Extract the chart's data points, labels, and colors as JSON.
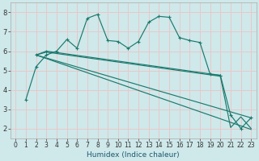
{
  "xlabel": "Humidex (Indice chaleur)",
  "bg_color": "#cfe8ea",
  "grid_color": "#e8c8c8",
  "line_color": "#1a7a6e",
  "xlim": [
    -0.5,
    23.5
  ],
  "ylim": [
    1.5,
    8.5
  ],
  "xticks": [
    0,
    1,
    2,
    3,
    4,
    5,
    6,
    7,
    8,
    9,
    10,
    11,
    12,
    13,
    14,
    15,
    16,
    17,
    18,
    19,
    20,
    21,
    22,
    23
  ],
  "yticks": [
    2,
    3,
    4,
    5,
    6,
    7,
    8
  ],
  "curve1_x": [
    1,
    2,
    3,
    4,
    5,
    6,
    7,
    8,
    9,
    10,
    11,
    12,
    13,
    14,
    15,
    16,
    17,
    18,
    19,
    20
  ],
  "curve1_y": [
    3.5,
    5.2,
    5.8,
    6.0,
    6.6,
    6.15,
    7.7,
    7.9,
    6.55,
    6.5,
    6.15,
    6.5,
    7.5,
    7.8,
    7.75,
    6.7,
    6.55,
    6.45,
    4.8,
    4.75
  ],
  "curve2_x": [
    2,
    3,
    20,
    21,
    22,
    23
  ],
  "curve2_y": [
    5.8,
    6.0,
    4.75,
    2.7,
    2.0,
    2.55
  ],
  "curve3_x": [
    2,
    3,
    20,
    21,
    22,
    23
  ],
  "curve3_y": [
    5.8,
    5.95,
    4.7,
    2.05,
    2.6,
    2.0
  ],
  "curve4_x": [
    2,
    23
  ],
  "curve4_y": [
    5.8,
    2.55
  ],
  "curve5_x": [
    2,
    23
  ],
  "curve5_y": [
    5.8,
    1.95
  ]
}
